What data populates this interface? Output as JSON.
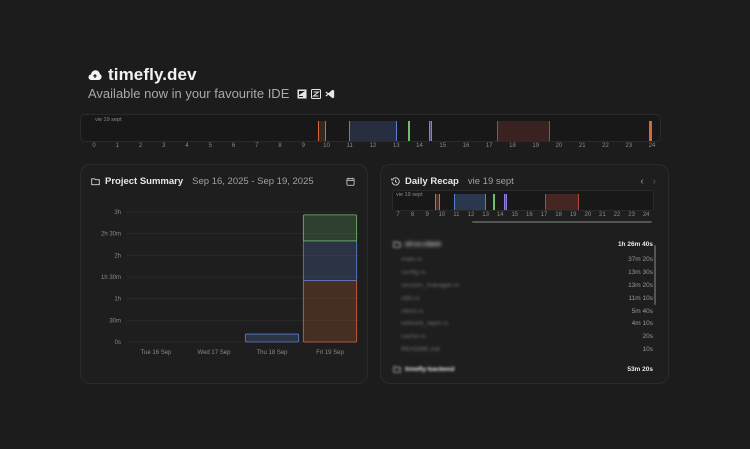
{
  "brand": {
    "title": "timefly.dev",
    "tagline": "Available now in your favourite IDE",
    "logo_icon": "cloud-icon",
    "ide_icons": [
      "jetbrains-icon",
      "zed-icon",
      "vscode-icon"
    ]
  },
  "colors": {
    "orange": "#d4673b",
    "blue": "#5a7fd0",
    "green": "#6dbf6a",
    "purple": "#8a7be0",
    "red": "#b0483a"
  },
  "top_timeline": {
    "date": "vie 19 sept",
    "ticks": [
      "0",
      "1",
      "2",
      "3",
      "4",
      "5",
      "6",
      "7",
      "8",
      "9",
      "10",
      "11",
      "12",
      "13",
      "14",
      "15",
      "16",
      "17",
      "18",
      "19",
      "20",
      "21",
      "22",
      "23",
      "24"
    ]
  },
  "project_summary": {
    "title": "Project Summary",
    "range": "Sep 16, 2025 - Sep 19, 2025",
    "calendar_icon": "calendar-icon",
    "folder_icon": "folder-icon"
  },
  "chart_data": {
    "type": "bar",
    "categories": [
      "Tue 16 Sep",
      "Wed 17 Sep",
      "Thu 18 Sep",
      "Fri 19 Sep"
    ],
    "y_ticks": [
      "0s",
      "30m",
      "1h",
      "1h 30m",
      "2h",
      "2h 30m",
      "3h"
    ],
    "ylim": [
      0,
      180
    ],
    "series": [
      {
        "values": [
          0,
          0,
          0,
          85
        ],
        "color": "#d4673b"
      },
      {
        "values": [
          0,
          0,
          11,
          55
        ],
        "color": "#5a7fd0"
      },
      {
        "values": [
          0,
          0,
          0,
          36
        ],
        "color": "#6dbf6a"
      }
    ],
    "stack": true
  },
  "daily_recap": {
    "title": "Daily Recap",
    "date": "vie 19 sept",
    "prev_label": "‹",
    "next_label": "›",
    "history_icon": "history-icon",
    "mini_ticks": [
      "7",
      "8",
      "9",
      "10",
      "11",
      "12",
      "13",
      "14",
      "15",
      "16",
      "17",
      "18",
      "19",
      "20",
      "21",
      "22",
      "23",
      "24"
    ],
    "projects": [
      {
        "name": "cli-cc-client",
        "duration": "1h 26m 40s",
        "blurred": true,
        "files": [
          {
            "name": "main.rs",
            "duration": "37m 20s"
          },
          {
            "name": "config.rs",
            "duration": "13m 30s"
          },
          {
            "name": "session_manager.rs",
            "duration": "13m 20s"
          },
          {
            "name": "utils.rs",
            "duration": "11m 10s"
          },
          {
            "name": "client.rs",
            "duration": "5m 40s"
          },
          {
            "name": "network_layer.rs",
            "duration": "4m 10s"
          },
          {
            "name": "cache.rs",
            "duration": "20s"
          },
          {
            "name": "README.md",
            "duration": "10s"
          }
        ]
      },
      {
        "name": "timefly-backend",
        "duration": "53m 20s",
        "blurred": false,
        "files": []
      }
    ]
  }
}
